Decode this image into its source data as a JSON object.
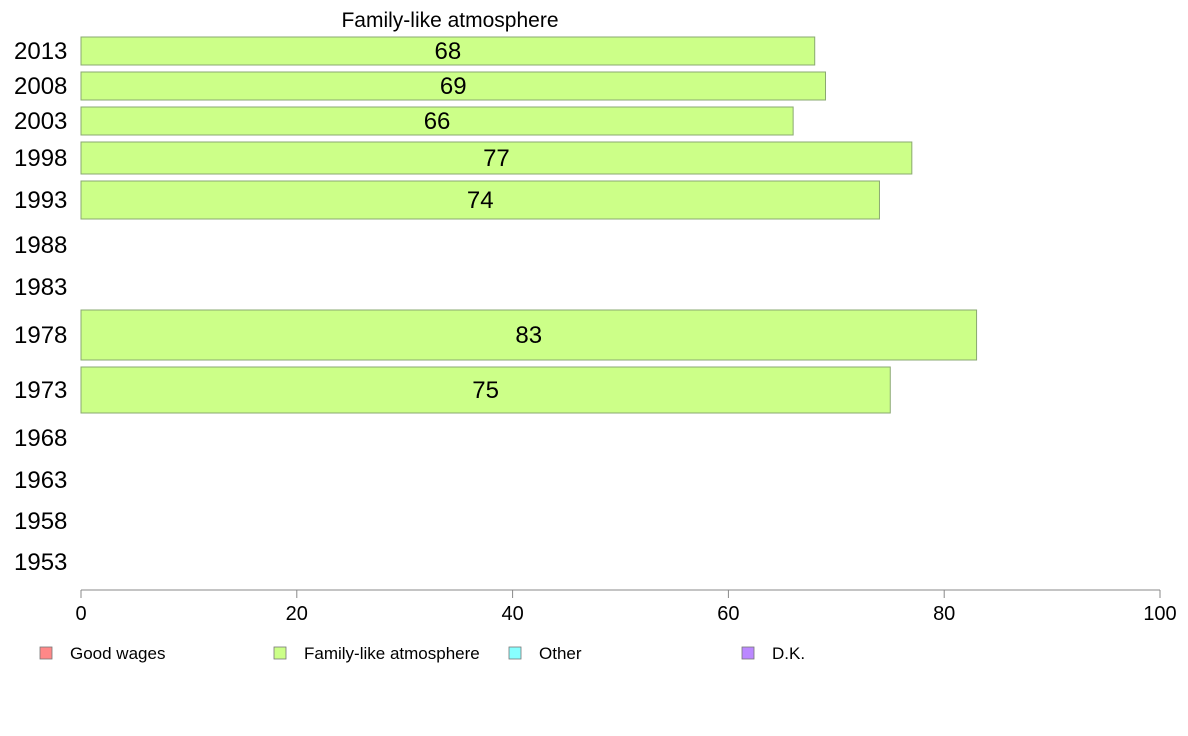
{
  "chart_data": {
    "type": "bar",
    "orientation": "horizontal",
    "title": "Family-like atmosphere",
    "categories": [
      "2013",
      "2008",
      "2003",
      "1998",
      "1993",
      "1988",
      "1983",
      "1978",
      "1973",
      "1968",
      "1963",
      "1958",
      "1953"
    ],
    "series": [
      {
        "name": "Family-like atmosphere",
        "color": "#ccff88",
        "values": [
          68,
          69,
          66,
          77,
          74,
          null,
          null,
          83,
          75,
          null,
          null,
          null,
          null
        ]
      }
    ],
    "xlim": [
      0,
      100
    ],
    "xticks": [
      "0",
      "20",
      "40",
      "60",
      "80",
      "100"
    ],
    "grid": false,
    "legend": {
      "position": "bottom",
      "items": [
        {
          "label": "Good wages",
          "color": "#ff8888"
        },
        {
          "label": "Family-like atmosphere",
          "color": "#ccff88"
        },
        {
          "label": "Other",
          "color": "#88ffff"
        },
        {
          "label": "D.K.",
          "color": "#bb88ff"
        }
      ]
    }
  }
}
